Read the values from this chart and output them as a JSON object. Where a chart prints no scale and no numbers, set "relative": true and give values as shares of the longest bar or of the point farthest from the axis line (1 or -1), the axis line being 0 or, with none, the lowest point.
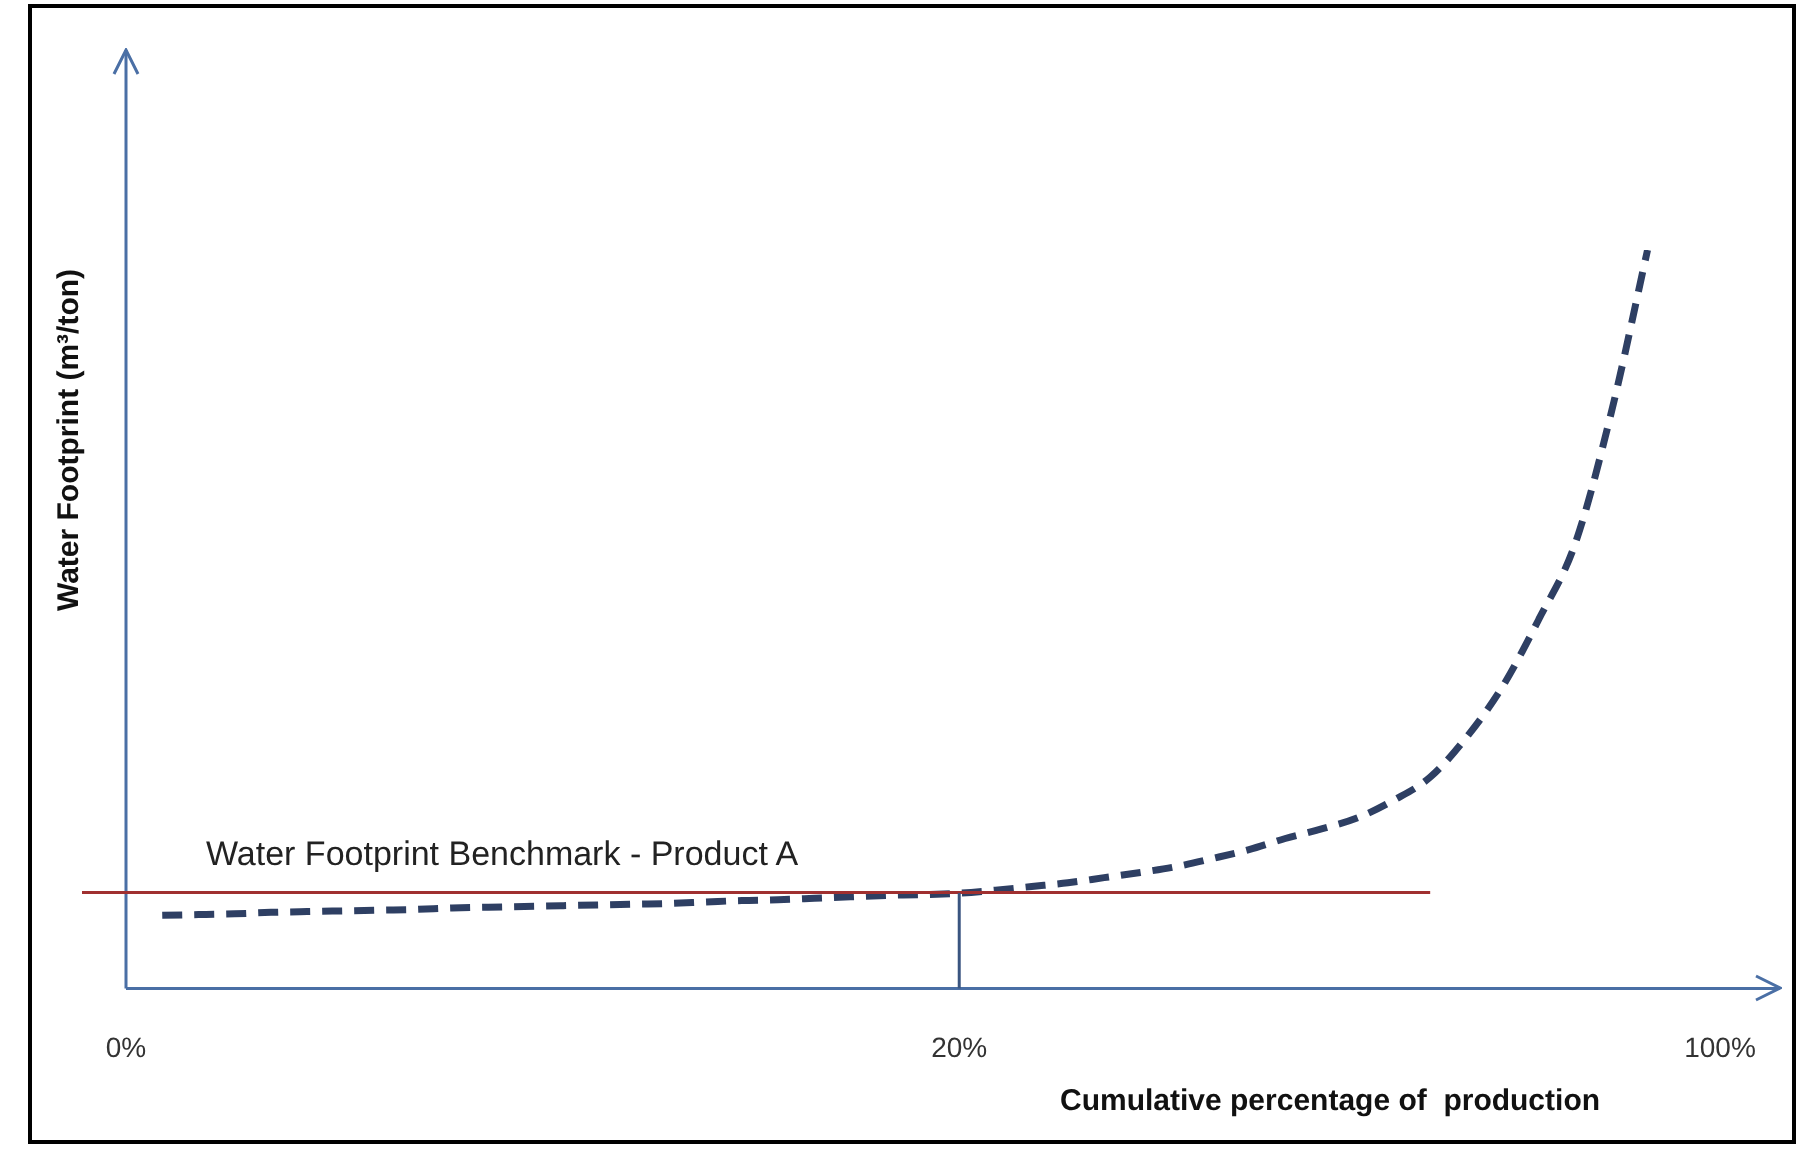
{
  "chart_data": {
    "type": "line",
    "xlabel": "Cumulative percentage of  production",
    "ylabel": "Water Footprint (m³/ton)",
    "categories": [
      "0%",
      null,
      null,
      null,
      null,
      null,
      null,
      null,
      null,
      null,
      null,
      null,
      null,
      null,
      null,
      null,
      null,
      null,
      null,
      null,
      null,
      null,
      null,
      "20%",
      null,
      null,
      null,
      null,
      null,
      null,
      null,
      null,
      null,
      null,
      null,
      null,
      null,
      null,
      null,
      null,
      null,
      null,
      null,
      null,
      "100%"
    ],
    "relative": true,
    "series": [
      {
        "color": "#2e3f63",
        "values": [
          null,
          0.099,
          0.1,
          0.101,
          0.103,
          0.104,
          0.105,
          0.106,
          0.107,
          0.109,
          0.11,
          0.111,
          0.112,
          0.113,
          0.114,
          0.115,
          0.117,
          0.119,
          0.12,
          0.122,
          0.124,
          0.126,
          0.127,
          0.129,
          0.133,
          0.138,
          0.143,
          0.15,
          0.157,
          0.165,
          0.176,
          0.188,
          0.203,
          0.216,
          0.231,
          0.255,
          0.286,
          0.34,
          0.409,
          0.5,
          0.602,
          0.78,
          1,
          null,
          null
        ]
      }
    ],
    "ref_lines": [
      {
        "axis": "y",
        "value": 0.13,
        "label": "Water Footprint Benchmark - Product A",
        "color": "#a03030"
      },
      {
        "axis": "x",
        "value": "20%",
        "color": "#3a5580"
      }
    ],
    "line_style": "dashed",
    "marker": "none",
    "grid": false,
    "legend": false,
    "tick_labels": "x"
  }
}
